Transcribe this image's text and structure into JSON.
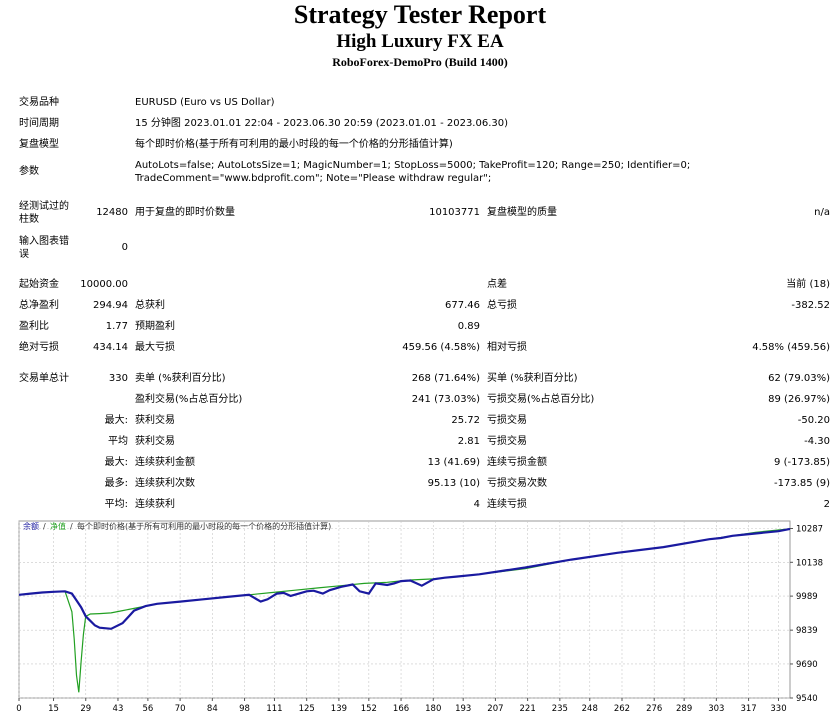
{
  "header": {
    "title": "Strategy Tester Report",
    "ea_name": "High Luxury FX EA",
    "server_build": "RoboForex-DemoPro (Build 1400)"
  },
  "settings": {
    "symbol_label": "交易品种",
    "symbol_value": "EURUSD (Euro vs US Dollar)",
    "period_label": "时间周期",
    "period_value": "15 分钟图 2023.01.01 22:04 - 2023.06.30 20:59 (2023.01.01 - 2023.06.30)",
    "model_label": "复盘模型",
    "model_value": "每个即时价格(基于所有可利用的最小时段的每一个价格的分形插值计算)",
    "params_label": "参数",
    "params_line1": "AutoLots=false; AutoLotsSize=1; MagicNumber=1; StopLoss=5000; TakeProfit=120; Range=250; Identifier=0;",
    "params_line2": "TradeComment=\"www.bdprofit.com\"; Note=\"Please withdraw regular\";"
  },
  "quality": {
    "bars_label_1": "经测试过的",
    "bars_label_2": "柱数",
    "bars_value": "12480",
    "ticks_label": "用于复盘的即时价数量",
    "ticks_value": "10103771",
    "model_quality_label": "复盘模型的质量",
    "model_quality_value": "n/a",
    "mismatch_label_1": "输入图表错",
    "mismatch_label_2": "误",
    "mismatch_value": "0"
  },
  "results": {
    "deposit_label": "起始资金",
    "deposit_value": "10000.00",
    "spread_label": "点差",
    "spread_value": "当前 (18)",
    "net_profit_label": "总净盈利",
    "net_profit_value": "294.94",
    "gross_profit_label": "总获利",
    "gross_profit_value": "677.46",
    "gross_loss_label": "总亏损",
    "gross_loss_value": "-382.52",
    "profit_factor_label": "盈利比",
    "profit_factor_value": "1.77",
    "expected_payoff_label": "预期盈利",
    "expected_payoff_value": "0.89",
    "abs_drawdown_label": "绝对亏损",
    "abs_drawdown_value": "434.14",
    "max_drawdown_label": "最大亏损",
    "max_drawdown_value": "459.56 (4.58%)",
    "rel_drawdown_label": "相对亏损",
    "rel_drawdown_value": "4.58% (459.56)"
  },
  "trades": {
    "total_label": "交易单总计",
    "total_value": "330",
    "short_label": "卖单 (%获利百分比)",
    "short_value": "268 (71.64%)",
    "long_label": "买单 (%获利百分比)",
    "long_value": "62 (79.03%)",
    "profit_trades_label": "盈利交易(%占总百分比)",
    "profit_trades_value": "241 (73.03%)",
    "loss_trades_label": "亏损交易(%占总百分比)",
    "loss_trades_value": "89 (26.97%)",
    "largest_prefix": "最大:",
    "largest_profit_label": "获利交易",
    "largest_profit_value": "25.72",
    "largest_loss_label": "亏损交易",
    "largest_loss_value": "-50.20",
    "average_prefix": "平均",
    "average_profit_label": "获利交易",
    "average_profit_value": "2.81",
    "average_loss_label": "亏损交易",
    "average_loss_value": "-4.30",
    "max_consec_prefix": "最大:",
    "max_consec_wins_label": "连续获利金额",
    "max_consec_wins_value": "13 (41.69)",
    "max_consec_losses_label": "连续亏损金额",
    "max_consec_losses_value": "9 (-173.85)",
    "max_consec_amount_prefix": "最多:",
    "max_consec_profit_label": "连续获利次数",
    "max_consec_profit_value": "95.13 (10)",
    "max_consec_loss_label": "亏损交易次数",
    "max_consec_loss_value": "-173.85 (9)",
    "avg_consec_prefix": "平均:",
    "avg_consec_wins_label": "连续获利",
    "avg_consec_wins_value": "4",
    "avg_consec_losses_label": "连续亏损",
    "avg_consec_losses_value": "2"
  },
  "chart_data": {
    "type": "line",
    "legend": {
      "balance": "余额",
      "equity": "净值",
      "model": "每个即时价格(基于所有可利用的最小时段的每一个价格的分形插值计算)",
      "placement": "top-left"
    },
    "colors": {
      "balance": "#1a1aa0",
      "equity": "#22a022",
      "grid": "#c8c8c8",
      "border": "#9a9a9a"
    },
    "ylim": [
      9540,
      10320
    ],
    "xlim": [
      0,
      335
    ],
    "y_ticks": [
      10287,
      10138,
      9989,
      9839,
      9690,
      9540
    ],
    "x_ticks": [
      0,
      15,
      29,
      43,
      56,
      70,
      84,
      98,
      111,
      125,
      139,
      152,
      166,
      180,
      193,
      207,
      221,
      235,
      248,
      262,
      276,
      289,
      303,
      317,
      330
    ],
    "balance": {
      "x": [
        0,
        5,
        10,
        15,
        20,
        23,
        25,
        27,
        29,
        31,
        33,
        35,
        40,
        45,
        50,
        55,
        60,
        70,
        80,
        90,
        100,
        105,
        108,
        112,
        115,
        118,
        125,
        128,
        132,
        135,
        140,
        145,
        148,
        152,
        155,
        160,
        163,
        166,
        170,
        175,
        180,
        185,
        190,
        200,
        210,
        220,
        240,
        260,
        280,
        300,
        305,
        310,
        315,
        320,
        325,
        330,
        335
      ],
      "y": [
        9995,
        10000,
        10005,
        10008,
        10010,
        10000,
        9970,
        9940,
        9900,
        9880,
        9860,
        9850,
        9845,
        9870,
        9925,
        9945,
        9955,
        9965,
        9975,
        9985,
        9995,
        9965,
        9975,
        10000,
        10003,
        9990,
        10010,
        10013,
        10000,
        10015,
        10030,
        10040,
        10010,
        10000,
        10045,
        10038,
        10045,
        10055,
        10058,
        10035,
        10063,
        10070,
        10075,
        10085,
        10100,
        10115,
        10150,
        10180,
        10205,
        10240,
        10245,
        10255,
        10260,
        10265,
        10270,
        10275,
        10285
      ]
    },
    "equity": {
      "x": [
        0,
        5,
        10,
        15,
        20,
        23,
        24,
        25,
        26,
        27,
        28,
        29,
        30,
        31,
        35,
        40,
        45,
        50,
        55,
        60,
        70,
        80,
        90,
        100,
        110,
        120,
        130,
        140,
        150,
        160,
        165,
        170,
        180,
        190,
        200,
        220,
        240,
        260,
        280,
        300,
        320,
        335
      ],
      "y": [
        9995,
        10000,
        10005,
        10008,
        10010,
        9920,
        9800,
        9640,
        9565,
        9700,
        9820,
        9900,
        9905,
        9910,
        9912,
        9915,
        9925,
        9935,
        9945,
        9955,
        9965,
        9975,
        9985,
        9995,
        10005,
        10015,
        10025,
        10035,
        10045,
        10050,
        10055,
        10060,
        10065,
        10075,
        10085,
        10110,
        10150,
        10180,
        10205,
        10240,
        10270,
        10285
      ]
    }
  }
}
